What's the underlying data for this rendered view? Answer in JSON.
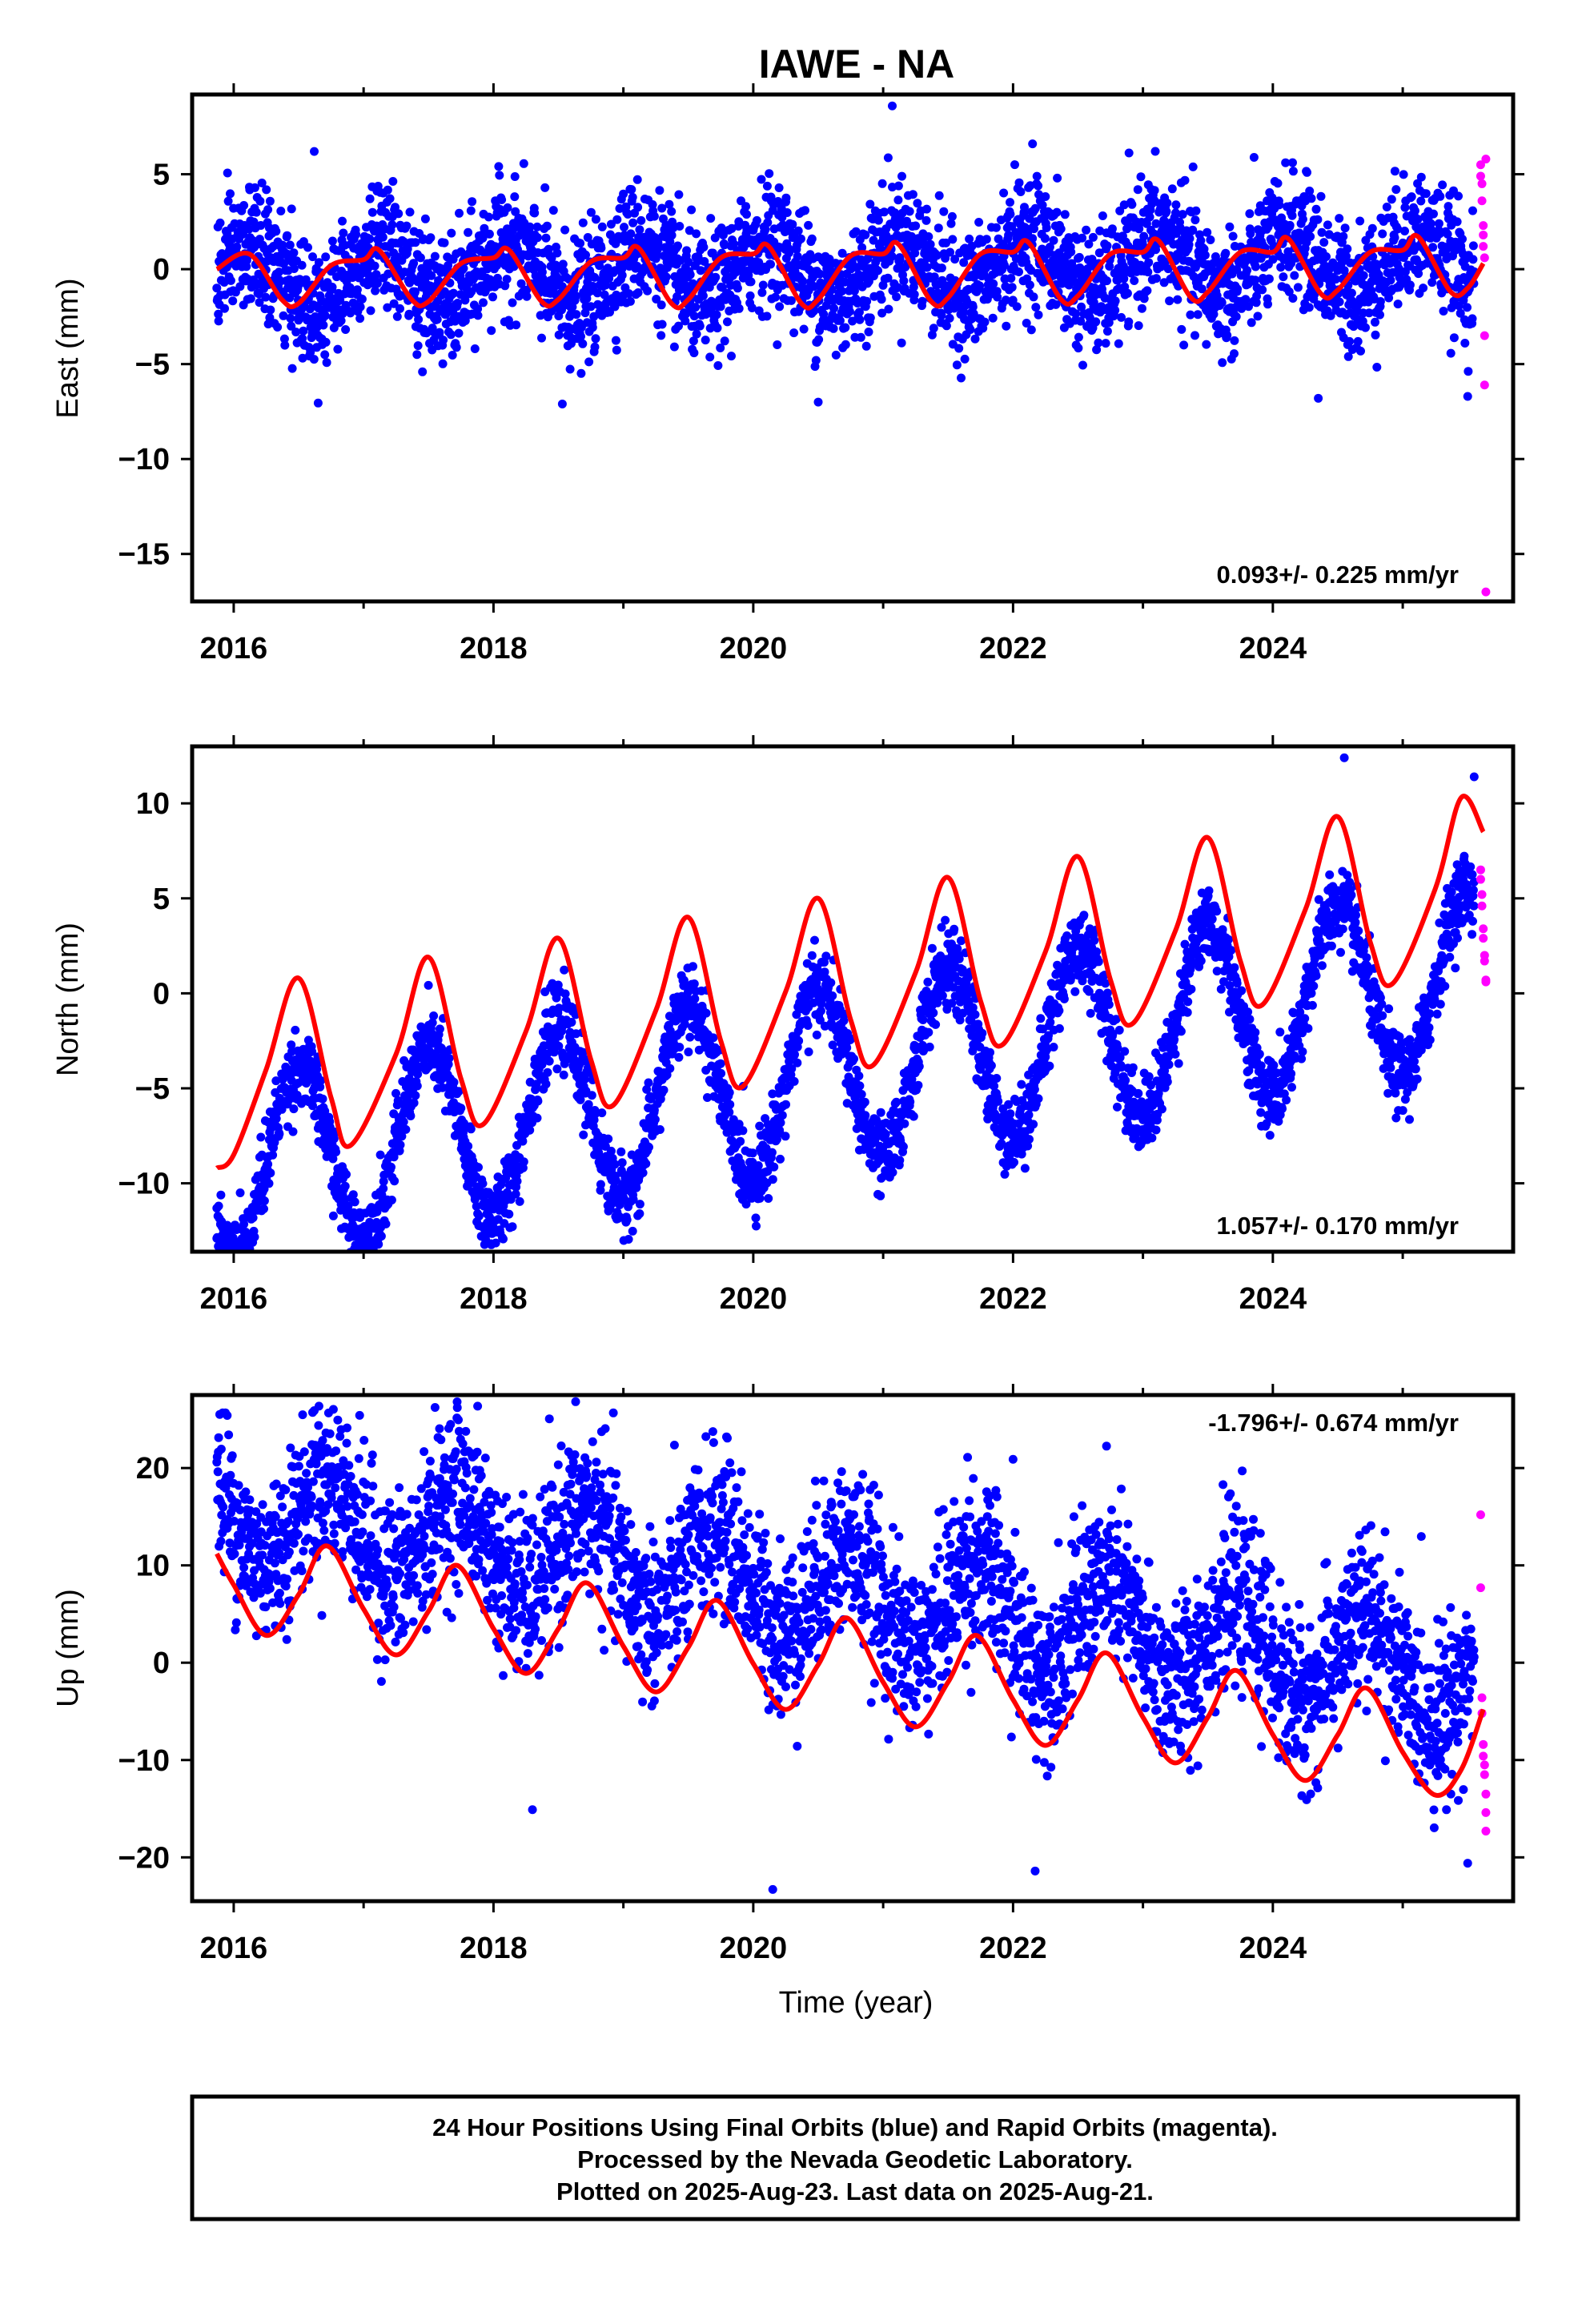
{
  "title": "IAWE - NA",
  "xlabel": "Time (year)",
  "footer": [
    "24 Hour Positions Using Final Orbits (blue) and Rapid Orbits (magenta).",
    "Processed by the Nevada Geodetic Laboratory.",
    "Plotted on 2025-Aug-23. Last data on 2025-Aug-21."
  ],
  "colors": {
    "final": "#0000ff",
    "rapid": "#ff00ff",
    "model": "#ff0000",
    "frame": "#000000"
  },
  "chart_data": [
    {
      "type": "scatter",
      "ylabel": "East (mm)",
      "rate_label": "0.093+/- 0.225 mm/yr",
      "xlim": [
        2015.68,
        2025.85
      ],
      "ylim": [
        -17.5,
        9.2
      ],
      "xticks": [
        2016,
        2018,
        2020,
        2022,
        2024
      ],
      "xtick_labels": [
        "2016",
        "2018",
        "2020",
        "2022",
        "2024"
      ],
      "yticks": [
        5,
        0,
        -5,
        -10,
        -15
      ],
      "ytick_labels": [
        "5",
        "0",
        "−5",
        "−10",
        "−15"
      ],
      "model": {
        "name": "fit",
        "x": [
          2015.87,
          2016.12,
          2016.37,
          2016.5,
          2016.75,
          2017.0,
          2017.12,
          2017.37,
          2017.5,
          2017.75,
          2018.0,
          2018.12,
          2018.37,
          2018.5,
          2018.75,
          2019.0,
          2019.12,
          2019.37,
          2019.5,
          2019.75,
          2020.0,
          2020.12,
          2020.37,
          2020.5,
          2020.75,
          2021.0,
          2021.12,
          2021.37,
          2021.5,
          2021.75,
          2022.0,
          2022.12,
          2022.37,
          2022.5,
          2022.75,
          2023.0,
          2023.12,
          2023.37,
          2023.5,
          2023.75,
          2024.0,
          2024.12,
          2024.37,
          2024.5,
          2024.75,
          2025.0,
          2025.12,
          2025.37,
          2025.5,
          2025.62
        ],
        "y": [
          0.0,
          0.8,
          -1.6,
          -1.8,
          0.2,
          0.5,
          1.0,
          -1.6,
          -1.7,
          0.3,
          0.6,
          1.0,
          -1.7,
          -1.6,
          0.4,
          0.6,
          1.1,
          -1.8,
          -1.6,
          0.6,
          0.8,
          1.2,
          -1.8,
          -1.6,
          0.7,
          0.8,
          1.3,
          -1.7,
          -1.5,
          0.8,
          0.9,
          1.4,
          -1.6,
          -1.4,
          0.8,
          0.9,
          1.5,
          -1.5,
          -1.2,
          0.9,
          0.9,
          1.6,
          -1.3,
          -1.1,
          0.9,
          1.0,
          1.7,
          -1.2,
          -1.0,
          0.3
        ]
      },
      "final_series": {
        "name": "Final Orbits",
        "x_start": 2015.87,
        "x_end": 2025.55,
        "annual_amp": 1.5,
        "annual_phase": 2016.12,
        "semiannual_amp": 0.0,
        "offset": 0.0,
        "rate": 0.093,
        "scatter_sd": 1.6,
        "outliers": [
          [
            2021.07,
            8.6
          ],
          [
            2018.53,
            -7.1
          ],
          [
            2020.5,
            -7.0
          ],
          [
            2016.62,
            6.2
          ],
          [
            2022.15,
            6.6
          ],
          [
            2024.35,
            -6.8
          ],
          [
            2025.5,
            -6.7
          ]
        ]
      },
      "rapid_series": {
        "name": "Rapid Orbits",
        "x": [
          2025.6,
          2025.6,
          2025.61,
          2025.61,
          2025.62,
          2025.62,
          2025.62,
          2025.63,
          2025.63,
          2025.63,
          2025.64,
          2025.64
        ],
        "y": [
          5.5,
          4.9,
          4.5,
          3.6,
          2.3,
          1.8,
          1.2,
          0.6,
          -3.5,
          -6.1,
          -17.0,
          5.8
        ]
      }
    },
    {
      "type": "scatter",
      "ylabel": "North (mm)",
      "rate_label": "1.057+/- 0.170 mm/yr",
      "xlim": [
        2015.68,
        2025.85
      ],
      "ylim": [
        -13.6,
        13.0
      ],
      "xticks": [
        2016,
        2018,
        2020,
        2022,
        2024
      ],
      "xtick_labels": [
        "2016",
        "2018",
        "2020",
        "2022",
        "2024"
      ],
      "yticks": [
        10,
        5,
        0,
        -5,
        -10
      ],
      "ytick_labels": [
        "10",
        "5",
        "0",
        "−5",
        "−10"
      ],
      "model": {
        "name": "fit",
        "x": [
          2015.87,
          2016.0,
          2016.25,
          2016.5,
          2016.75,
          2016.9,
          2017.25,
          2017.5,
          2017.75,
          2017.92,
          2018.25,
          2018.5,
          2018.75,
          2018.92,
          2019.25,
          2019.5,
          2019.75,
          2019.92,
          2020.25,
          2020.5,
          2020.75,
          2020.92,
          2021.25,
          2021.5,
          2021.75,
          2021.92,
          2022.25,
          2022.5,
          2022.75,
          2022.92,
          2023.25,
          2023.5,
          2023.75,
          2023.92,
          2024.25,
          2024.5,
          2024.75,
          2024.92,
          2025.25,
          2025.45,
          2025.62
        ],
        "y": [
          -9.2,
          -8.5,
          -4.0,
          0.8,
          -5.5,
          -8.0,
          -3.2,
          1.9,
          -4.5,
          -6.9,
          -2.0,
          2.9,
          -3.5,
          -5.9,
          -0.9,
          4.0,
          -2.5,
          -4.9,
          0.1,
          5.0,
          -1.4,
          -3.8,
          1.1,
          6.1,
          -0.4,
          -2.7,
          2.2,
          7.2,
          0.7,
          -1.6,
          3.3,
          8.2,
          1.7,
          -0.6,
          4.4,
          9.3,
          2.7,
          0.5,
          5.5,
          10.3,
          8.5
        ]
      },
      "final_series": {
        "name": "Final Orbits",
        "x_start": 2015.87,
        "x_end": 2025.55,
        "annual_amp": 4.7,
        "annual_phase": 2016.5,
        "semiannual_amp": 0.0,
        "offset": -4.2,
        "rate": 1.057,
        "scatter_sd": 1.0,
        "outliers": [
          [
            2015.87,
            -12.9
          ],
          [
            2024.55,
            12.4
          ],
          [
            2025.55,
            11.4
          ],
          [
            2016.05,
            -10.5
          ]
        ]
      },
      "rapid_series": {
        "name": "Rapid Orbits",
        "x": [
          2025.6,
          2025.6,
          2025.61,
          2025.61,
          2025.62,
          2025.62,
          2025.63,
          2025.63,
          2025.64,
          2025.64
        ],
        "y": [
          6.5,
          6.0,
          5.2,
          4.6,
          3.4,
          2.9,
          2.0,
          1.7,
          0.7,
          0.6
        ]
      }
    },
    {
      "type": "scatter",
      "ylabel": "Up (mm)",
      "rate_label": "-1.796+/- 0.674 mm/yr",
      "xlim": [
        2015.68,
        2025.85
      ],
      "ylim": [
        -24.5,
        27.5
      ],
      "xticks": [
        2016,
        2018,
        2020,
        2022,
        2024
      ],
      "xtick_labels": [
        "2016",
        "2018",
        "2020",
        "2022",
        "2024"
      ],
      "yticks": [
        20,
        10,
        0,
        -10,
        -20
      ],
      "ytick_labels": [
        "20",
        "10",
        "0",
        "−10",
        "−20"
      ],
      "model": {
        "name": "fit",
        "x": [
          2015.87,
          2016.0,
          2016.25,
          2016.5,
          2016.72,
          2017.0,
          2017.25,
          2017.5,
          2017.72,
          2018.0,
          2018.25,
          2018.5,
          2018.72,
          2019.0,
          2019.25,
          2019.5,
          2019.72,
          2020.0,
          2020.25,
          2020.5,
          2020.72,
          2021.0,
          2021.25,
          2021.5,
          2021.72,
          2022.0,
          2022.25,
          2022.5,
          2022.72,
          2023.0,
          2023.25,
          2023.5,
          2023.72,
          2024.0,
          2024.25,
          2024.5,
          2024.72,
          2025.0,
          2025.25,
          2025.45,
          2025.62
        ],
        "y": [
          11.2,
          8.0,
          2.8,
          7.0,
          12.0,
          5.5,
          0.8,
          5.3,
          10.0,
          3.5,
          -1.1,
          3.5,
          8.2,
          1.7,
          -3.0,
          1.6,
          6.4,
          -0.1,
          -4.8,
          -0.2,
          4.6,
          -2.0,
          -6.6,
          -2.0,
          2.8,
          -3.8,
          -8.5,
          -3.8,
          1.0,
          -5.6,
          -10.3,
          -5.6,
          -0.8,
          -7.4,
          -12.1,
          -7.4,
          -2.6,
          -9.2,
          -13.6,
          -11.0,
          -4.8
        ]
      },
      "final_series": {
        "name": "Final Orbits",
        "x_start": 2015.87,
        "x_end": 2025.55,
        "annual_amp": 4.8,
        "annual_phase": 2016.72,
        "semiannual_amp": 0.0,
        "offset": 7.2,
        "rate": -1.796,
        "scatter_sd": 4.2,
        "outliers": [
          [
            2017.72,
            26.8
          ],
          [
            2016.62,
            25.9
          ],
          [
            2015.95,
            25.4
          ],
          [
            2021.65,
            21.1
          ],
          [
            2022.0,
            20.9
          ],
          [
            2020.15,
            -23.3
          ],
          [
            2022.17,
            -21.4
          ],
          [
            2025.5,
            -20.6
          ],
          [
            2018.3,
            -15.1
          ],
          [
            2020.6,
            16.5
          ]
        ]
      },
      "rapid_series": {
        "name": "Rapid Orbits",
        "x": [
          2025.6,
          2025.6,
          2025.61,
          2025.61,
          2025.62,
          2025.62,
          2025.63,
          2025.63,
          2025.64,
          2025.64,
          2025.64
        ],
        "y": [
          15.2,
          7.7,
          -3.6,
          -5.2,
          -8.4,
          -9.6,
          -10.5,
          -11.5,
          -13.5,
          -15.4,
          -17.3
        ]
      }
    }
  ]
}
